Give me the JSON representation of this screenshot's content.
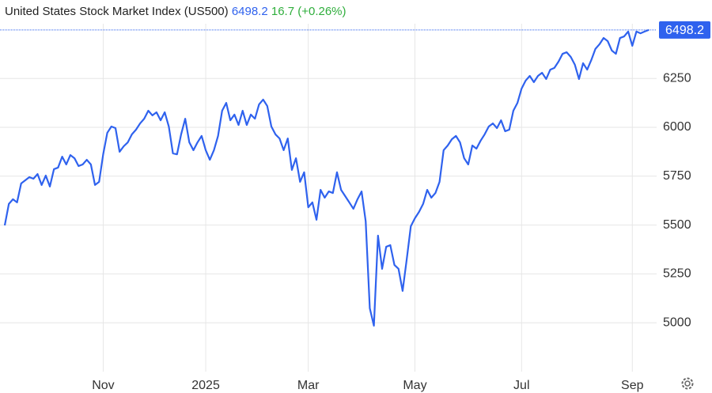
{
  "chart_data": {
    "type": "line",
    "title": "United States Stock Market Index (US500)",
    "last_value": 6498.2,
    "change": "16.7 (+0.26%)",
    "color": "#2f62ee",
    "grid": true,
    "ylim": [
      4750,
      6530
    ],
    "yticks": [
      5000,
      5250,
      5500,
      5750,
      6000,
      6250
    ],
    "categories": [
      null,
      null,
      null,
      null,
      null,
      null,
      null,
      null,
      null,
      null,
      null,
      null,
      null,
      null,
      null,
      null,
      null,
      null,
      null,
      null,
      null,
      null,
      null,
      null,
      "Nov",
      null,
      null,
      null,
      null,
      null,
      null,
      null,
      null,
      null,
      null,
      null,
      null,
      null,
      null,
      null,
      null,
      null,
      null,
      null,
      null,
      null,
      null,
      null,
      null,
      "2025",
      null,
      null,
      null,
      null,
      null,
      null,
      null,
      null,
      null,
      null,
      null,
      null,
      null,
      null,
      null,
      null,
      null,
      null,
      null,
      null,
      null,
      null,
      null,
      null,
      "Mar",
      null,
      null,
      null,
      null,
      null,
      null,
      null,
      null,
      null,
      null,
      null,
      null,
      null,
      null,
      null,
      null,
      null,
      null,
      null,
      null,
      null,
      null,
      null,
      null,
      null,
      "May",
      null,
      null,
      null,
      null,
      null,
      null,
      null,
      null,
      null,
      null,
      null,
      null,
      null,
      null,
      null,
      null,
      null,
      null,
      null,
      null,
      null,
      null,
      null,
      null,
      null,
      "Jul",
      null,
      null,
      null,
      null,
      null,
      null,
      null,
      null,
      null,
      null,
      null,
      null,
      null,
      null,
      null,
      null,
      null,
      null,
      null,
      null,
      null,
      null,
      null,
      null,
      null,
      null,
      "Sep",
      null,
      null,
      null,
      null
    ],
    "values": [
      5498,
      5608,
      5632,
      5616,
      5713,
      5729,
      5745,
      5737,
      5761,
      5705,
      5753,
      5697,
      5786,
      5794,
      5850,
      5810,
      5858,
      5842,
      5802,
      5810,
      5834,
      5810,
      5705,
      5721,
      5862,
      5972,
      6004,
      5996,
      5875,
      5903,
      5923,
      5964,
      5988,
      6020,
      6044,
      6085,
      6061,
      6077,
      6036,
      6077,
      6004,
      5867,
      5862,
      5964,
      6044,
      5923,
      5883,
      5923,
      5956,
      5883,
      5834,
      5883,
      5956,
      6085,
      6125,
      6036,
      6065,
      6012,
      6085,
      6012,
      6065,
      6044,
      6117,
      6142,
      6109,
      6004,
      5964,
      5943,
      5883,
      5943,
      5782,
      5842,
      5721,
      5770,
      5591,
      5616,
      5527,
      5680,
      5640,
      5672,
      5664,
      5770,
      5680,
      5648,
      5616,
      5583,
      5632,
      5672,
      5519,
      5074,
      4985,
      5446,
      5276,
      5389,
      5397,
      5296,
      5276,
      5163,
      5324,
      5494,
      5535,
      5567,
      5608,
      5680,
      5640,
      5664,
      5721,
      5883,
      5907,
      5939,
      5956,
      5923,
      5842,
      5810,
      5907,
      5891,
      5931,
      5964,
      6004,
      6020,
      5996,
      6036,
      5980,
      5988,
      6085,
      6125,
      6198,
      6239,
      6263,
      6231,
      6263,
      6279,
      6247,
      6295,
      6304,
      6336,
      6376,
      6384,
      6360,
      6320,
      6247,
      6328,
      6295,
      6344,
      6401,
      6425,
      6457,
      6441,
      6393,
      6376,
      6457,
      6465,
      6490,
      6417,
      6490,
      6481,
      6490,
      6498.2
    ]
  }
}
